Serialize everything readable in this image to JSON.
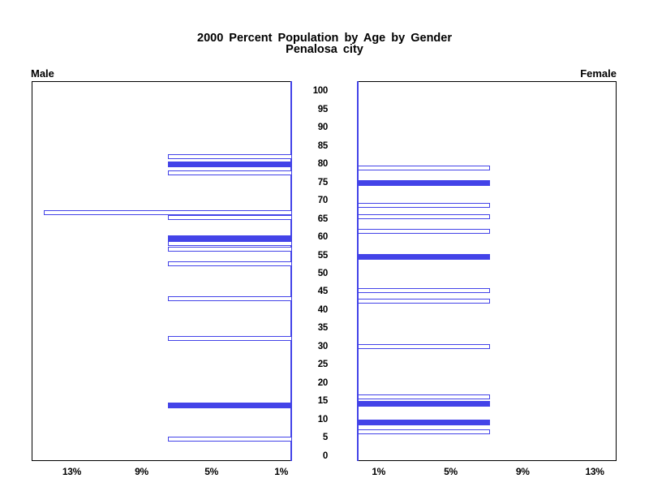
{
  "title": {
    "line1": "2000 Percent Population by Age by Gender",
    "line2": "Penalosa city"
  },
  "panels": {
    "left_label": "Male",
    "right_label": "Female"
  },
  "colors": {
    "bar_blue": "#4343e8",
    "frame": "#000000",
    "background": "#ffffff",
    "text": "#000000"
  },
  "chart_data": {
    "type": "bar",
    "subtype": "population-pyramid",
    "orientation": "horizontal",
    "grid": false,
    "legend": false,
    "title": "2000 Percent Population by Age by Gender",
    "subtitle": "Penalosa city",
    "age_axis": {
      "label": "",
      "tick_values": [
        100,
        95,
        90,
        85,
        80,
        75,
        70,
        65,
        60,
        55,
        50,
        45,
        40,
        35,
        30,
        25,
        20,
        15,
        10,
        5,
        0
      ],
      "range": [
        0,
        104
      ]
    },
    "pct_axis": {
      "tick_values": [
        1,
        5,
        9,
        13
      ],
      "tick_labels": [
        "1%",
        "5%",
        "9%",
        "13%"
      ],
      "range": [
        0,
        15.3
      ]
    },
    "series": [
      {
        "name": "Male",
        "side": "left",
        "bars": [
          {
            "age": 82.0,
            "pct": 7.5,
            "style": "hollow"
          },
          {
            "age": 79.9,
            "pct": 7.5,
            "style": "solid"
          },
          {
            "age": 77.5,
            "pct": 7.5,
            "style": "hollow"
          },
          {
            "age": 66.8,
            "pct": 14.6,
            "style": "hollow"
          },
          {
            "age": 65.4,
            "pct": 7.5,
            "style": "hollow"
          },
          {
            "age": 59.6,
            "pct": 7.5,
            "style": "solid"
          },
          {
            "age": 58.3,
            "pct": 7.5,
            "style": "hollow"
          },
          {
            "age": 56.6,
            "pct": 7.5,
            "style": "hollow"
          },
          {
            "age": 52.7,
            "pct": 7.5,
            "style": "hollow"
          },
          {
            "age": 43.2,
            "pct": 7.5,
            "style": "hollow"
          },
          {
            "age": 32.2,
            "pct": 7.5,
            "style": "hollow"
          },
          {
            "age": 13.9,
            "pct": 7.5,
            "style": "solid"
          },
          {
            "age": 4.7,
            "pct": 7.5,
            "style": "hollow"
          }
        ]
      },
      {
        "name": "Female",
        "side": "right",
        "bars": [
          {
            "age": 78.9,
            "pct": 7.2,
            "style": "hollow"
          },
          {
            "age": 74.7,
            "pct": 7.2,
            "style": "solid"
          },
          {
            "age": 68.6,
            "pct": 7.2,
            "style": "hollow"
          },
          {
            "age": 65.6,
            "pct": 7.2,
            "style": "hollow"
          },
          {
            "age": 61.6,
            "pct": 7.2,
            "style": "hollow"
          },
          {
            "age": 54.5,
            "pct": 7.2,
            "style": "solid"
          },
          {
            "age": 45.3,
            "pct": 7.2,
            "style": "hollow"
          },
          {
            "age": 42.4,
            "pct": 7.2,
            "style": "hollow"
          },
          {
            "age": 30.0,
            "pct": 7.2,
            "style": "hollow"
          },
          {
            "age": 16.2,
            "pct": 7.2,
            "style": "hollow"
          },
          {
            "age": 14.2,
            "pct": 7.2,
            "style": "solid"
          },
          {
            "age": 9.1,
            "pct": 7.2,
            "style": "solid"
          },
          {
            "age": 6.5,
            "pct": 7.2,
            "style": "hollow"
          }
        ]
      }
    ]
  }
}
